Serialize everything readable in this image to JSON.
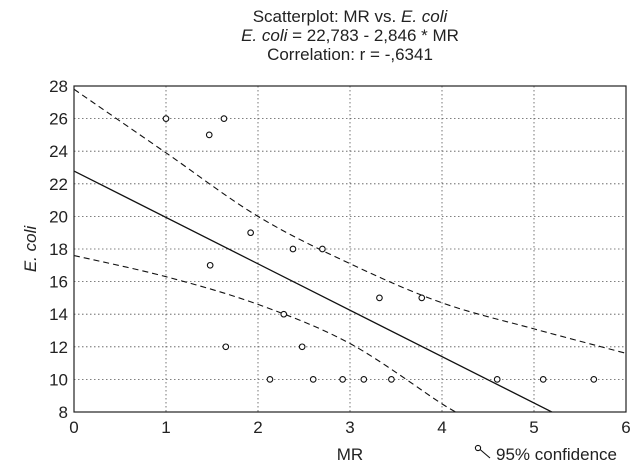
{
  "chart_data": {
    "type": "scatter",
    "title_lines": [
      [
        "Scatterplot: MR vs. ",
        "E. coli"
      ],
      [
        "E. coli",
        " = 22,783 - 2,846  *  MR"
      ],
      [
        "Correlation: r = -,6341"
      ]
    ],
    "xlabel": "MR",
    "ylabel": "E. coli",
    "xlim": [
      0,
      6
    ],
    "ylim": [
      8,
      28
    ],
    "x_ticks": [
      0,
      1,
      2,
      3,
      4,
      5,
      6
    ],
    "y_ticks": [
      8,
      10,
      12,
      14,
      16,
      18,
      20,
      22,
      24,
      26,
      28
    ],
    "grid": true,
    "legend": {
      "label": "95% confidence",
      "placement": "bottom-right"
    },
    "regression": {
      "intercept": 22.783,
      "slope": -2.846
    },
    "confidence_upper": [
      [
        0,
        27.8
      ],
      [
        1,
        23.9
      ],
      [
        2,
        20.0
      ],
      [
        3,
        17.1
      ],
      [
        4,
        14.7
      ],
      [
        5,
        13.1
      ],
      [
        6,
        11.6
      ]
    ],
    "confidence_lower": [
      [
        0,
        17.6
      ],
      [
        1,
        16.3
      ],
      [
        2,
        14.6
      ],
      [
        3,
        12.2
      ],
      [
        4,
        8.5
      ],
      [
        4.2,
        7.9
      ]
    ],
    "points": [
      {
        "x": 1.0,
        "y": 26
      },
      {
        "x": 1.47,
        "y": 25
      },
      {
        "x": 1.63,
        "y": 26
      },
      {
        "x": 1.48,
        "y": 17
      },
      {
        "x": 1.92,
        "y": 19
      },
      {
        "x": 1.65,
        "y": 12
      },
      {
        "x": 2.38,
        "y": 18
      },
      {
        "x": 2.7,
        "y": 18
      },
      {
        "x": 2.28,
        "y": 14
      },
      {
        "x": 2.48,
        "y": 12
      },
      {
        "x": 3.32,
        "y": 15
      },
      {
        "x": 3.78,
        "y": 15
      },
      {
        "x": 2.13,
        "y": 10
      },
      {
        "x": 2.6,
        "y": 10
      },
      {
        "x": 2.92,
        "y": 10
      },
      {
        "x": 3.15,
        "y": 10
      },
      {
        "x": 3.45,
        "y": 10
      },
      {
        "x": 4.6,
        "y": 10
      },
      {
        "x": 5.1,
        "y": 10
      },
      {
        "x": 5.65,
        "y": 10
      }
    ]
  }
}
